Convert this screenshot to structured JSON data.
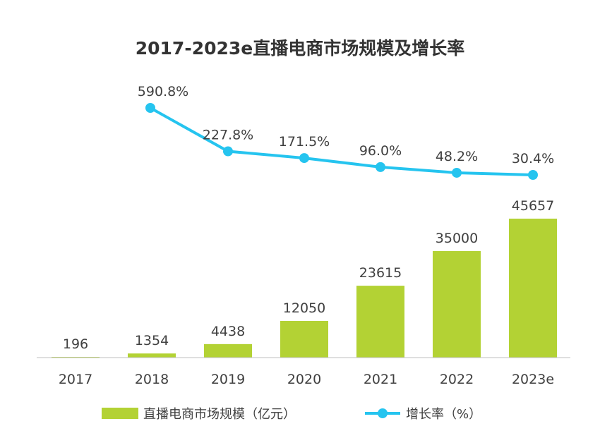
{
  "chart_data": {
    "type": "bar+line",
    "title": "2017-2023e直播电商市场规模及增长率",
    "categories": [
      "2017",
      "2018",
      "2019",
      "2020",
      "2021",
      "2022",
      "2023e"
    ],
    "series": [
      {
        "name": "直播电商市场规模（亿元）",
        "type": "bar",
        "color": "#b3d234",
        "values": [
          196,
          1354,
          4438,
          12050,
          23615,
          35000,
          45657
        ],
        "labels": [
          "196",
          "1354",
          "4438",
          "12050",
          "23615",
          "35000",
          "45657"
        ]
      },
      {
        "name": "增长率（%）",
        "type": "line",
        "color": "#25c4ef",
        "values": [
          null,
          590.8,
          227.8,
          171.5,
          96.0,
          48.2,
          30.4
        ],
        "labels": [
          "",
          "590.8%",
          "227.8%",
          "171.5%",
          "96.0%",
          "48.2%",
          "30.4%"
        ]
      }
    ],
    "legend": "bottom",
    "grid": false
  }
}
